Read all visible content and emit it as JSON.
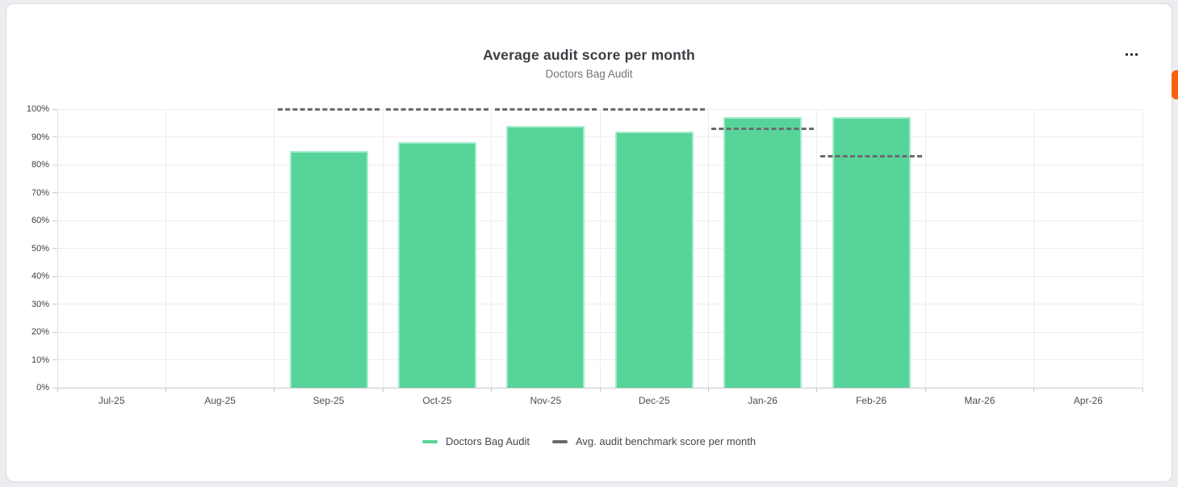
{
  "icons": {
    "more_options": "•••"
  },
  "colors": {
    "bar_fill": "#57d49a",
    "bar_border": "#a3ebcb",
    "benchmark_line": "#6b6b6b",
    "gridline": "#ededf0",
    "axis_line": "#c6c9cc",
    "accent_tab": "#f96011"
  },
  "chart_data": {
    "type": "bar",
    "title": "Average audit score per month",
    "subtitle": "Doctors Bag Audit",
    "categories": [
      "Jul-25",
      "Aug-25",
      "Sep-25",
      "Oct-25",
      "Nov-25",
      "Dec-25",
      "Jan-26",
      "Feb-26",
      "Mar-26",
      "Apr-26"
    ],
    "series": [
      {
        "name": "Doctors Bag Audit",
        "type": "bar",
        "color": "#57d49a",
        "values": [
          null,
          null,
          85,
          88,
          94,
          92,
          97,
          97,
          null,
          null
        ]
      },
      {
        "name": "Avg. audit benchmark score per month",
        "type": "dashed-segments",
        "color": "#6b6b6b",
        "values": [
          null,
          null,
          100,
          100,
          100,
          100,
          93,
          83,
          null,
          null
        ]
      }
    ],
    "ylabel": "",
    "xlabel": "",
    "ylim": [
      0,
      100
    ],
    "yticks": [
      "0%",
      "10%",
      "20%",
      "30%",
      "40%",
      "50%",
      "60%",
      "70%",
      "80%",
      "90%",
      "100%"
    ],
    "grid": true,
    "legend_position": "bottom"
  }
}
